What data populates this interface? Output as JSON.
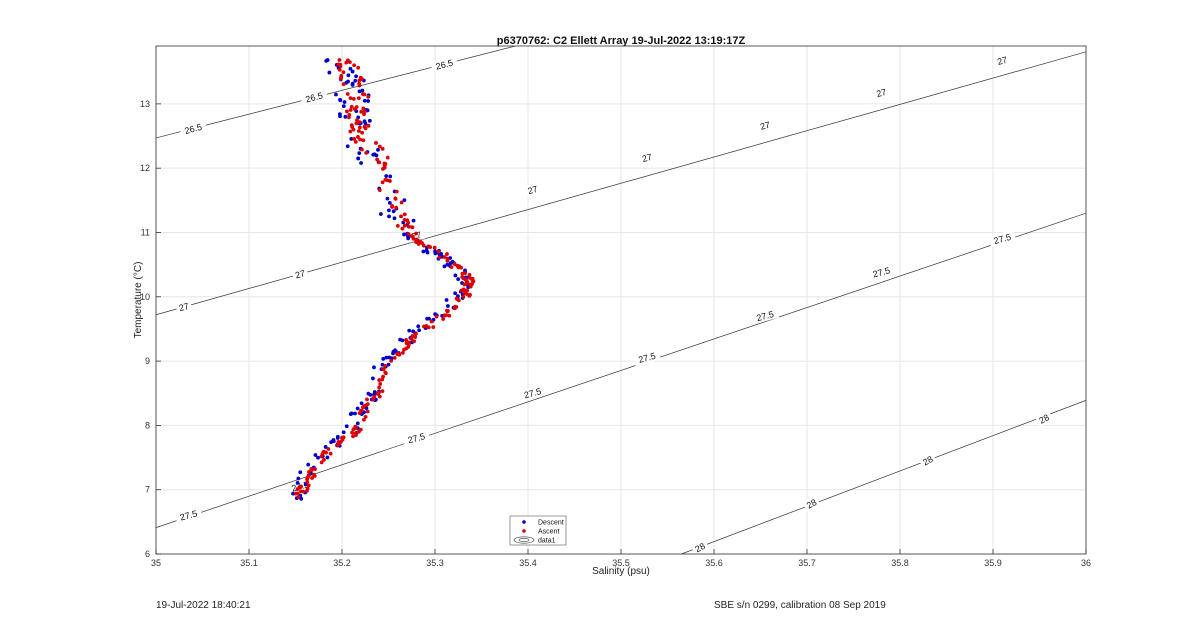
{
  "chart_data": {
    "type": "scatter",
    "title": "p6370762: C2 Ellett Array 19-Jul-2022 13:19:17Z",
    "xlabel": "Salinity (psu)",
    "ylabel": "Temperature (°C)",
    "xlim": [
      35,
      36
    ],
    "ylim": [
      6,
      13.9
    ],
    "xticks": [
      35,
      35.1,
      35.2,
      35.3,
      35.4,
      35.5,
      35.6,
      35.7,
      35.8,
      35.9,
      36
    ],
    "yticks": [
      6,
      7,
      8,
      9,
      10,
      11,
      12,
      13
    ],
    "grid": true,
    "legend": {
      "placement": "bottom-center",
      "entries": [
        {
          "name": "Descent",
          "color": "#0000cc",
          "marker": "dot"
        },
        {
          "name": "Ascent",
          "color": "#dd0000",
          "marker": "dot"
        },
        {
          "name": "data1",
          "color": "#333333",
          "marker": "contour"
        }
      ]
    },
    "profile": [
      [
        35.152,
        6.87
      ],
      [
        35.16,
        7.15
      ],
      [
        35.172,
        7.42
      ],
      [
        35.186,
        7.62
      ],
      [
        35.2,
        7.78
      ],
      [
        35.213,
        7.9
      ],
      [
        35.218,
        8.12
      ],
      [
        35.228,
        8.32
      ],
      [
        35.236,
        8.48
      ],
      [
        35.238,
        8.72
      ],
      [
        35.245,
        8.92
      ],
      [
        35.258,
        9.12
      ],
      [
        35.272,
        9.32
      ],
      [
        35.288,
        9.52
      ],
      [
        35.305,
        9.68
      ],
      [
        35.318,
        9.82
      ],
      [
        35.327,
        9.98
      ],
      [
        35.334,
        10.15
      ],
      [
        35.334,
        10.3
      ],
      [
        35.322,
        10.48
      ],
      [
        35.305,
        10.65
      ],
      [
        35.288,
        10.82
      ],
      [
        35.268,
        10.96
      ],
      [
        35.258,
        11.3
      ],
      [
        35.25,
        11.6
      ],
      [
        35.242,
        11.9
      ],
      [
        35.233,
        12.2
      ],
      [
        35.22,
        12.5
      ],
      [
        35.215,
        12.8
      ],
      [
        35.218,
        13.05
      ],
      [
        35.212,
        13.3
      ],
      [
        35.205,
        13.55
      ],
      [
        35.203,
        13.72
      ]
    ],
    "contours": [
      {
        "level": 26.5,
        "points": [
          [
            35,
            12.47
          ],
          [
            35.4,
            13.95
          ]
        ]
      },
      {
        "level": 27,
        "points": [
          [
            35,
            9.72
          ],
          [
            36,
            13.81
          ]
        ]
      },
      {
        "level": 27.5,
        "points": [
          [
            35,
            6.41
          ],
          [
            36,
            11.3
          ]
        ]
      },
      {
        "level": 28,
        "points": [
          [
            35.565,
            6.0
          ],
          [
            36,
            8.39
          ]
        ]
      }
    ],
    "contour_labels": [
      {
        "text": "26.5",
        "x": 35.04,
        "y": 12.61
      },
      {
        "text": "26.5",
        "x": 35.17,
        "y": 13.1
      },
      {
        "text": "26.5",
        "x": 35.31,
        "y": 13.61
      },
      {
        "text": "27",
        "x": 35.03,
        "y": 9.84
      },
      {
        "text": "27",
        "x": 35.155,
        "y": 10.35
      },
      {
        "text": "27",
        "x": 35.28,
        "y": 10.95
      },
      {
        "text": "27",
        "x": 35.405,
        "y": 11.66
      },
      {
        "text": "27",
        "x": 35.528,
        "y": 12.16
      },
      {
        "text": "27",
        "x": 35.655,
        "y": 12.66
      },
      {
        "text": "27",
        "x": 35.78,
        "y": 13.17
      },
      {
        "text": "27",
        "x": 35.91,
        "y": 13.67
      },
      {
        "text": "27.5",
        "x": 35.035,
        "y": 6.6
      },
      {
        "text": "27.5",
        "x": 35.155,
        "y": 7.05
      },
      {
        "text": "27.5",
        "x": 35.28,
        "y": 7.8
      },
      {
        "text": "27.5",
        "x": 35.405,
        "y": 8.5
      },
      {
        "text": "27.5",
        "x": 35.528,
        "y": 9.05
      },
      {
        "text": "27.5",
        "x": 35.655,
        "y": 9.7
      },
      {
        "text": "27.5",
        "x": 35.78,
        "y": 10.38
      },
      {
        "text": "27.5",
        "x": 35.91,
        "y": 10.9
      },
      {
        "text": "28",
        "x": 35.585,
        "y": 6.1
      },
      {
        "text": "28",
        "x": 35.705,
        "y": 6.78
      },
      {
        "text": "28",
        "x": 35.83,
        "y": 7.45
      },
      {
        "text": "28",
        "x": 35.955,
        "y": 8.1
      }
    ]
  },
  "footer": {
    "left": "19-Jul-2022 18:40:21",
    "right": "SBE s/n 0299, calibration 08 Sep 2019"
  },
  "colors": {
    "descent": "#0000cc",
    "ascent": "#dd0000",
    "contour": "#333333",
    "grid": "#e6e6e6"
  }
}
